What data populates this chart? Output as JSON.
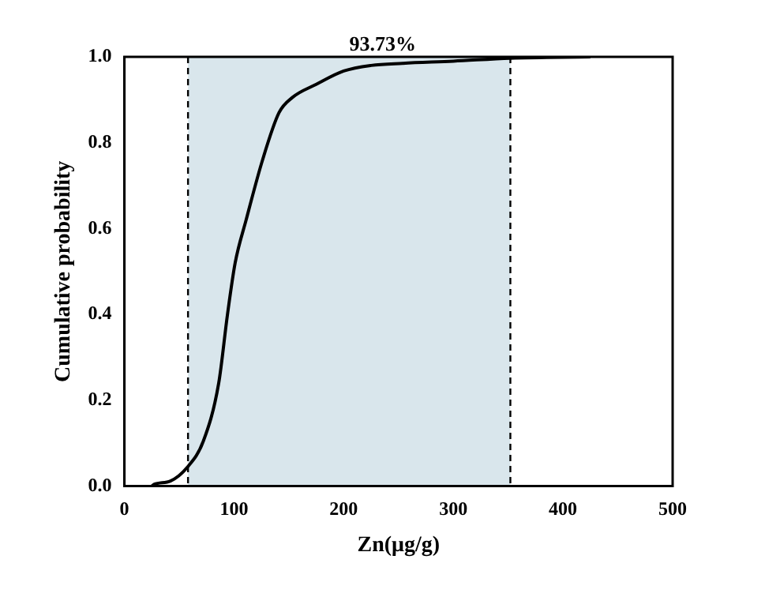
{
  "chart_data": {
    "type": "line",
    "xlabel": "Zn(μg/g)",
    "ylabel": "Cumulative probability",
    "annotations": [
      "93.73%"
    ],
    "series": [
      {
        "color": "#000000",
        "x": [
          25,
          27,
          42,
          57,
          72,
          86,
          94,
          101,
          111,
          126,
          141,
          153,
          175,
          200,
          225,
          254,
          300,
          352,
          425
        ],
        "values": [
          0,
          0.004,
          0.012,
          0.043,
          0.105,
          0.24,
          0.4,
          0.52,
          0.62,
          0.76,
          0.87,
          0.905,
          0.936,
          0.967,
          0.98,
          0.985,
          0.99,
          0.997,
          1.0
        ]
      }
    ],
    "xlim": [
      0,
      500
    ],
    "xticks": [
      0,
      100,
      200,
      300,
      400,
      500
    ],
    "ylim": [
      0,
      1
    ],
    "yticks": [
      {
        "value": 0,
        "label": "0.0"
      },
      {
        "value": 0.2,
        "label": "0.2"
      },
      {
        "value": 0.4,
        "label": "0.4"
      },
      {
        "value": 0.6,
        "label": "0.6"
      },
      {
        "value": 0.8,
        "label": "0.8"
      },
      {
        "value": 1,
        "label": "1.0"
      }
    ],
    "ref_lines": [
      {
        "axis": "x",
        "value": 58,
        "line_style": "dashed",
        "color": "#000000"
      },
      {
        "axis": "x",
        "value": 352,
        "line_style": "dashed",
        "color": "#000000"
      }
    ],
    "bands": [
      {
        "axis": "x",
        "from": 58,
        "to": 352,
        "color": "#d9e6ec"
      }
    ],
    "grid": false,
    "legend": false,
    "marker": "none",
    "line_style": "solid"
  }
}
